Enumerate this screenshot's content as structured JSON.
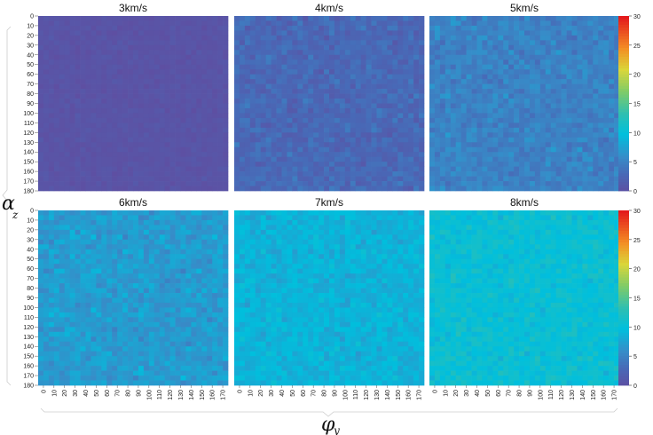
{
  "chart_data": {
    "type": "heatmap",
    "layout": {
      "rows": 2,
      "cols": 3
    },
    "x_label": "φ",
    "x_label_sub": "y",
    "y_label": "α",
    "y_label_sub": "z",
    "x_ticks": [
      "0",
      "10",
      "20",
      "30",
      "40",
      "50",
      "60",
      "70",
      "80",
      "90",
      "100",
      "110",
      "120",
      "130",
      "140",
      "150",
      "160",
      "170"
    ],
    "y_ticks": [
      "0",
      "10",
      "20",
      "30",
      "40",
      "50",
      "60",
      "70",
      "80",
      "90",
      "100",
      "110",
      "120",
      "130",
      "140",
      "150",
      "160",
      "170",
      "180"
    ],
    "x_range": [
      0,
      180
    ],
    "y_range": [
      0,
      180
    ],
    "grid_cells": 36,
    "colorbar": {
      "min": 0,
      "max": 30,
      "ticks": [
        "0",
        "5",
        "10",
        "15",
        "20",
        "25",
        "30"
      ],
      "colormap": "rainbow"
    },
    "panels": [
      {
        "title": "3km/s",
        "mean_value": 0.6,
        "spread": 0.5
      },
      {
        "title": "4km/s",
        "mean_value": 3.0,
        "spread": 1.4
      },
      {
        "title": "5km/s",
        "mean_value": 5.2,
        "spread": 1.5
      },
      {
        "title": "6km/s",
        "mean_value": 7.2,
        "spread": 1.6
      },
      {
        "title": "7km/s",
        "mean_value": 9.0,
        "spread": 1.5
      },
      {
        "title": "8km/s",
        "mean_value": 10.6,
        "spread": 1.6
      }
    ]
  }
}
